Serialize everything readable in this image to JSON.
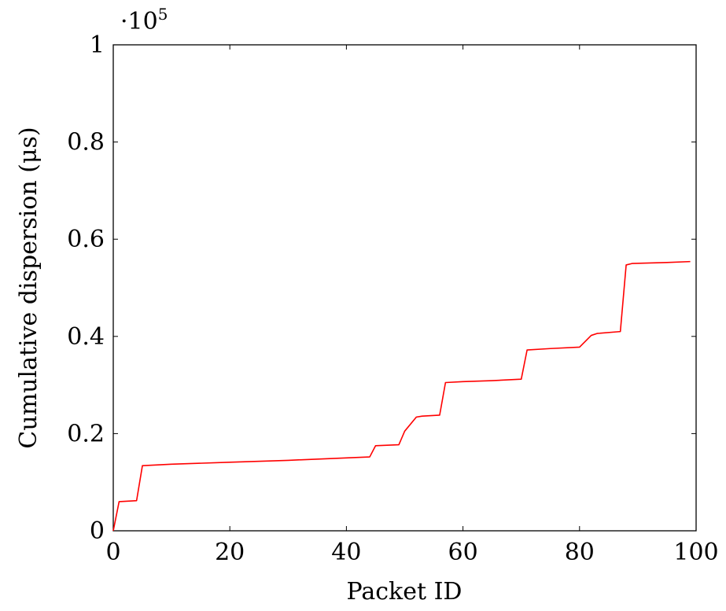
{
  "chart_data": {
    "type": "line",
    "title": "",
    "xlabel": "Packet ID",
    "ylabel": "Cumulative dispersion (μs)",
    "y_multiplier": {
      "base": "·10",
      "exponent": "5"
    },
    "xlim": [
      0,
      100
    ],
    "ylim": [
      0,
      1
    ],
    "x_ticks": [
      0,
      20,
      40,
      60,
      80,
      100
    ],
    "y_ticks": [
      0,
      0.2,
      0.4,
      0.6,
      0.8,
      1
    ],
    "x_tick_labels": [
      "0",
      "20",
      "40",
      "60",
      "80",
      "100"
    ],
    "y_tick_labels": [
      "0",
      "0.2",
      "0.4",
      "0.6",
      "0.8",
      "1"
    ],
    "grid": false,
    "series": [
      {
        "color": "#ff0000",
        "x": [
          0,
          1,
          4,
          5,
          10,
          20,
          30,
          40,
          44,
          45,
          49,
          50,
          52,
          53,
          56,
          57,
          60,
          65,
          70,
          71,
          75,
          80,
          82,
          83,
          87,
          88,
          89,
          95,
          99
        ],
        "y": [
          0,
          0.06,
          0.062,
          0.134,
          0.137,
          0.141,
          0.145,
          0.15,
          0.152,
          0.175,
          0.177,
          0.205,
          0.234,
          0.236,
          0.238,
          0.305,
          0.307,
          0.309,
          0.312,
          0.372,
          0.375,
          0.378,
          0.402,
          0.406,
          0.41,
          0.547,
          0.55,
          0.552,
          0.554
        ]
      }
    ]
  }
}
